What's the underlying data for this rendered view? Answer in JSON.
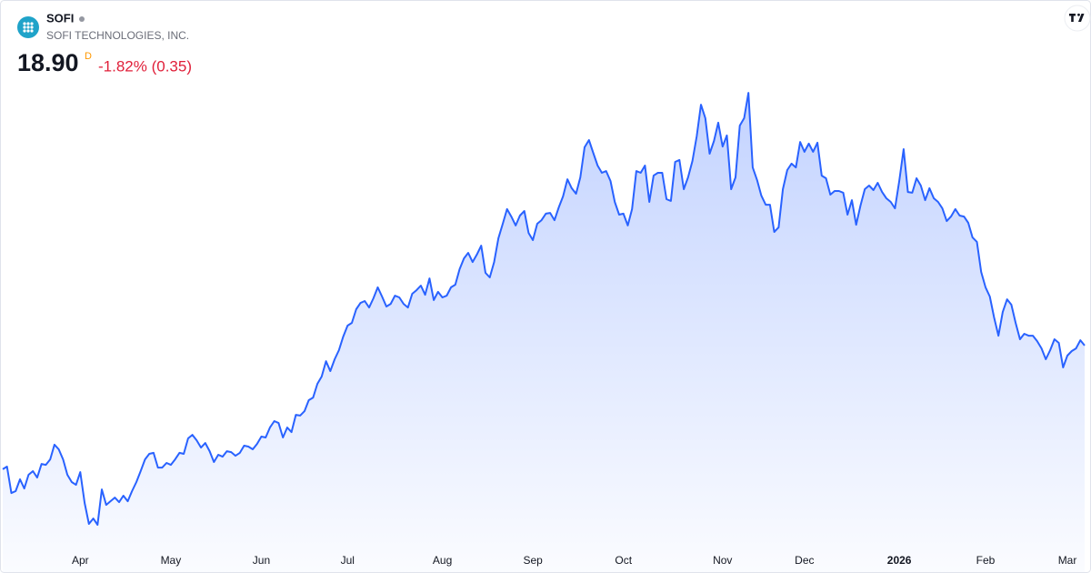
{
  "chart_data": {
    "type": "area",
    "title": "SOFI",
    "subtitle": "SOFI TECHNOLOGIES, INC.",
    "price": "18.90",
    "interval": "D",
    "change": "-1.82% (0.35)",
    "color": "#2962ff",
    "xlim": [
      0,
      251
    ],
    "ylim": [
      8,
      34
    ],
    "xticks": [
      {
        "value": 18,
        "label": "Apr"
      },
      {
        "value": 39,
        "label": "May"
      },
      {
        "value": 60,
        "label": "Jun"
      },
      {
        "value": 80,
        "label": "Jul"
      },
      {
        "value": 102,
        "label": "Aug"
      },
      {
        "value": 123,
        "label": "Sep"
      },
      {
        "value": 144,
        "label": "Oct"
      },
      {
        "value": 167,
        "label": "Nov"
      },
      {
        "value": 186,
        "label": "Dec"
      },
      {
        "value": 208,
        "label": "2026"
      },
      {
        "value": 228,
        "label": "Feb"
      },
      {
        "value": 247,
        "label": "Mar"
      }
    ],
    "values": [
      12.4,
      12.54,
      11.15,
      11.25,
      11.87,
      11.39,
      12.11,
      12.3,
      11.96,
      12.68,
      12.63,
      12.92,
      13.69,
      13.45,
      12.92,
      12.11,
      11.73,
      11.58,
      12.25,
      10.63,
      9.53,
      9.81,
      9.48,
      11.34,
      10.53,
      10.72,
      10.91,
      10.67,
      11.01,
      10.72,
      11.25,
      11.73,
      12.3,
      12.92,
      13.21,
      13.26,
      12.49,
      12.49,
      12.73,
      12.63,
      12.92,
      13.26,
      13.21,
      14.02,
      14.21,
      13.92,
      13.54,
      13.78,
      13.35,
      12.78,
      13.16,
      13.06,
      13.35,
      13.3,
      13.11,
      13.26,
      13.64,
      13.59,
      13.45,
      13.73,
      14.12,
      14.07,
      14.59,
      14.93,
      14.83,
      14.07,
      14.59,
      14.35,
      15.26,
      15.22,
      15.45,
      16.03,
      16.17,
      16.89,
      17.27,
      18.08,
      17.56,
      18.18,
      18.66,
      19.37,
      19.95,
      20.09,
      20.81,
      21.14,
      21.24,
      20.9,
      21.38,
      21.96,
      21.48,
      20.95,
      21.09,
      21.52,
      21.43,
      21.09,
      20.9,
      21.62,
      21.81,
      22.05,
      21.57,
      22.43,
      21.29,
      21.72,
      21.43,
      21.52,
      21.96,
      22.1,
      22.91,
      23.48,
      23.77,
      23.29,
      23.68,
      24.15,
      22.72,
      22.48,
      23.29,
      24.54,
      25.3,
      26.07,
      25.68,
      25.21,
      25.73,
      25.97,
      24.82,
      24.44,
      25.3,
      25.49,
      25.83,
      25.87,
      25.49,
      26.16,
      26.74,
      27.64,
      27.17,
      26.88,
      27.74,
      29.32,
      29.7,
      29.03,
      28.36,
      27.98,
      28.07,
      27.55,
      26.45,
      25.78,
      25.83,
      25.21,
      26.07,
      28.07,
      27.98,
      28.36,
      26.45,
      27.83,
      27.98,
      27.98,
      26.59,
      26.5,
      28.55,
      28.65,
      27.12,
      27.74,
      28.6,
      29.89,
      31.56,
      30.85,
      28.98,
      29.65,
      30.61,
      29.36,
      29.94,
      27.12,
      27.74,
      30.46,
      30.85,
      32.18,
      28.26,
      27.6,
      26.78,
      26.3,
      26.3,
      24.87,
      25.11,
      27.12,
      28.12,
      28.46,
      28.26,
      29.6,
      29.08,
      29.51,
      29.08,
      29.56,
      27.83,
      27.69,
      26.83,
      27.02,
      27.02,
      26.93,
      25.78,
      26.54,
      25.25,
      26.26,
      27.12,
      27.31,
      27.07,
      27.45,
      26.97,
      26.64,
      26.45,
      26.11,
      27.55,
      29.22,
      26.97,
      26.93,
      27.69,
      27.31,
      26.54,
      27.17,
      26.64,
      26.45,
      26.11,
      25.44,
      25.68,
      26.07,
      25.73,
      25.68,
      25.35,
      24.58,
      24.35,
      22.77,
      21.96,
      21.48,
      20.38,
      19.42,
      20.66,
      21.33,
      21.05,
      20.09,
      19.23,
      19.52,
      19.42,
      19.42,
      19.13,
      18.75,
      18.18,
      18.66,
      19.23,
      19.04,
      17.75,
      18.37,
      18.61,
      18.75,
      19.18,
      18.9
    ]
  }
}
